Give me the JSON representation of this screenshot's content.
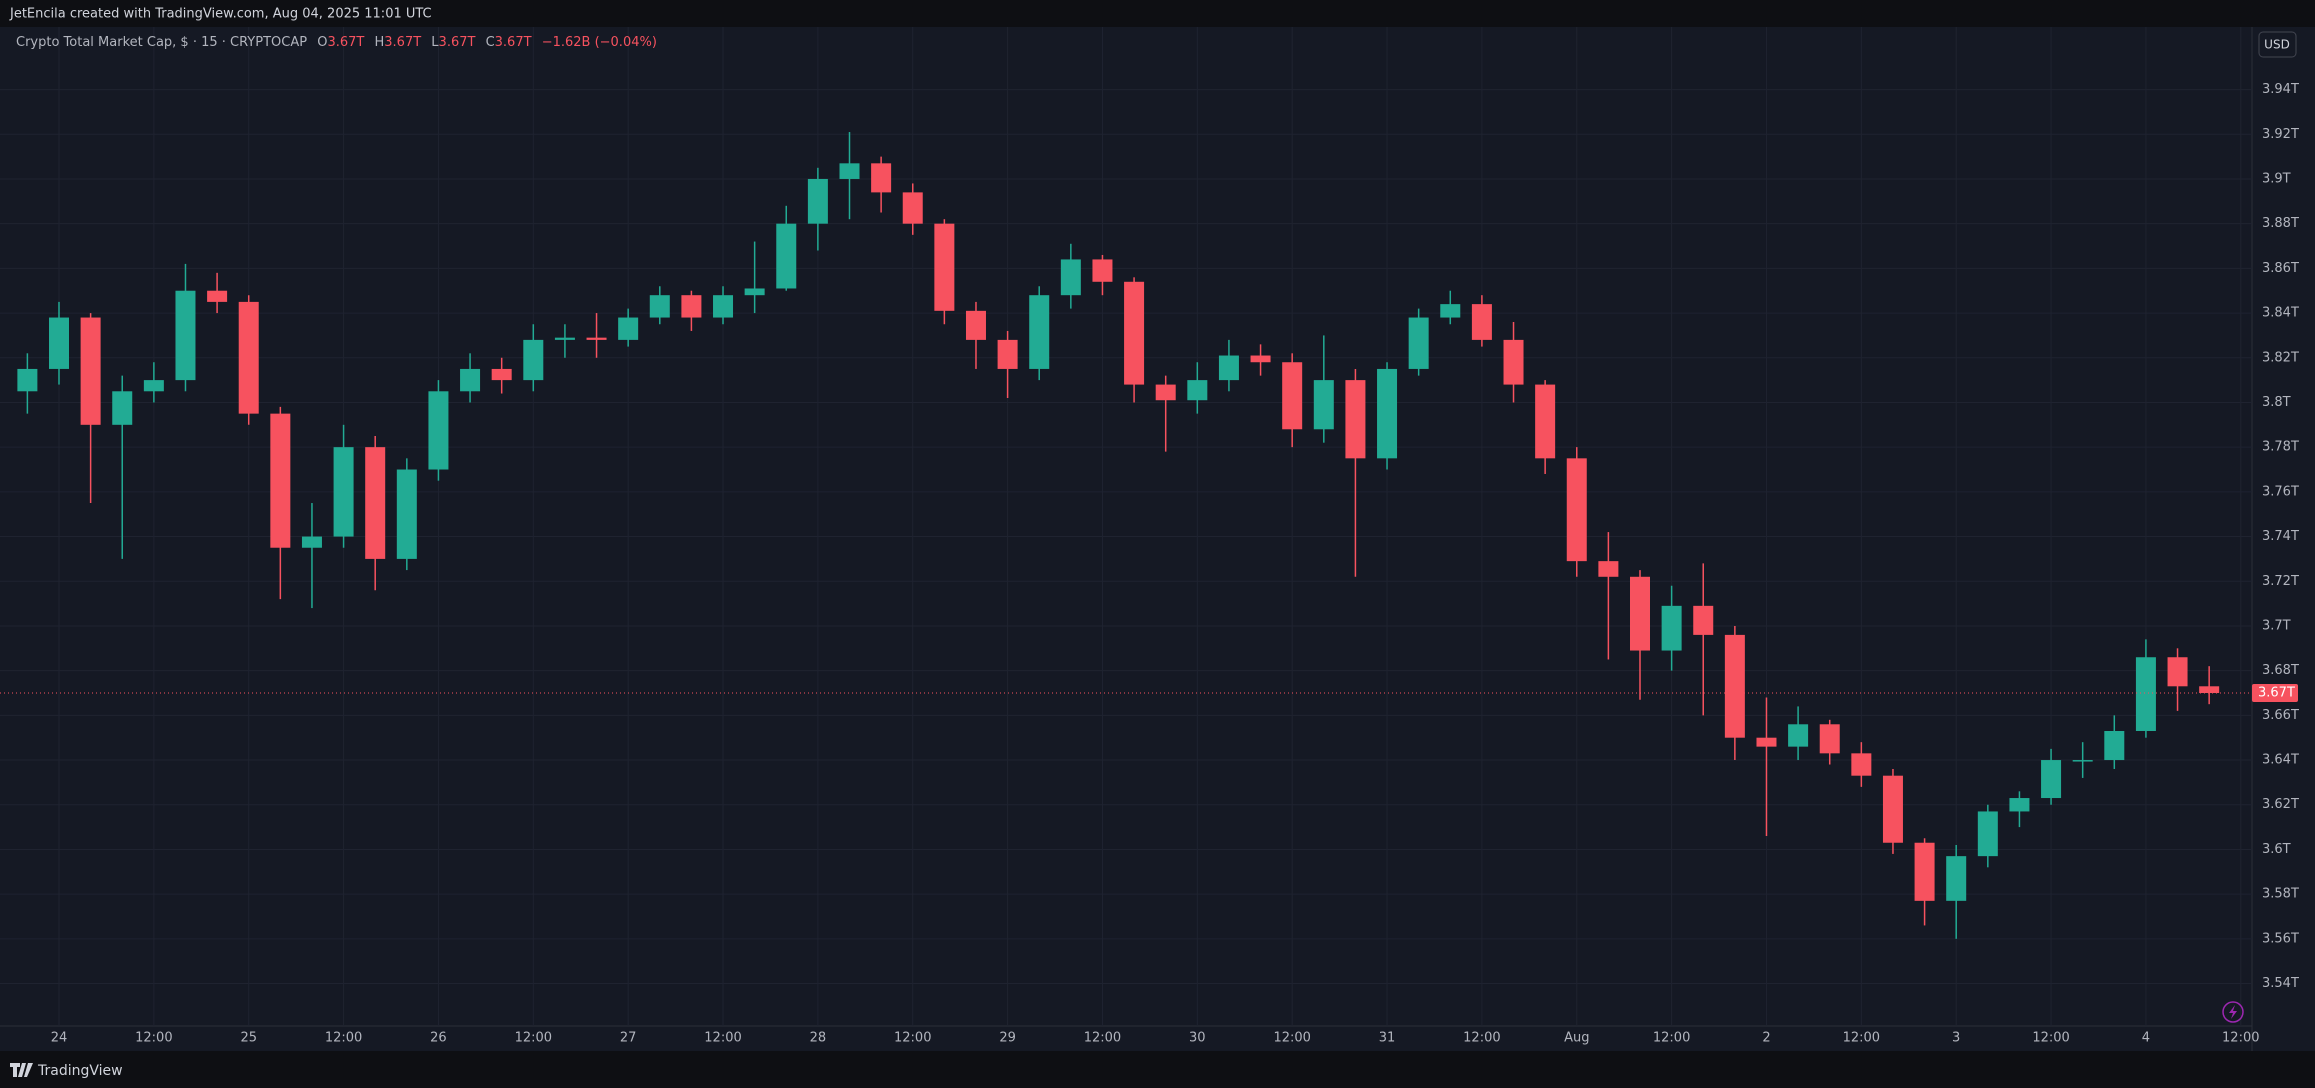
{
  "header": {
    "credit": "JetEncila created with TradingView.com, Aug 04, 2025 11:01 UTC"
  },
  "legend": {
    "symbol": "Crypto Total Market Cap, $ · 15 · CRYPTOCAP",
    "o_label": "O",
    "o": "3.67T",
    "h_label": "H",
    "h": "3.67T",
    "l_label": "L",
    "l": "3.67T",
    "c_label": "C",
    "c": "3.67T",
    "change": "−1.62B (−0.04%)"
  },
  "currency": "USD",
  "footer": {
    "brand": "TradingView"
  },
  "chart_data": {
    "type": "candlestick",
    "up_color": "#22ab94",
    "down_color": "#f7525f",
    "grid": true,
    "x_labels": [
      "24",
      "12:00",
      "25",
      "12:00",
      "26",
      "12:00",
      "27",
      "12:00",
      "28",
      "12:00",
      "29",
      "12:00",
      "30",
      "12:00",
      "31",
      "12:00",
      "Aug",
      "12:00",
      "2",
      "12:00",
      "3",
      "12:00",
      "4",
      "12:00"
    ],
    "open": [
      3.805,
      3.815,
      3.838,
      3.79,
      3.805,
      3.81,
      3.85,
      3.845,
      3.795,
      3.735,
      3.74,
      3.78,
      3.73,
      3.77,
      3.805,
      3.815,
      3.81,
      3.828,
      3.829,
      3.828,
      3.838,
      3.848,
      3.838,
      3.848,
      3.851,
      3.88,
      3.9,
      3.907,
      3.894,
      3.88,
      3.841,
      3.828,
      3.815,
      3.848,
      3.864,
      3.854,
      3.808,
      3.801,
      3.81,
      3.821,
      3.818,
      3.788,
      3.81,
      3.775,
      3.815,
      3.838,
      3.844,
      3.828,
      3.808,
      3.775,
      3.729,
      3.722,
      3.689,
      3.709,
      3.696,
      3.65,
      3.646,
      3.656,
      3.643,
      3.633,
      3.603,
      3.577,
      3.597,
      3.617,
      3.623,
      3.64,
      3.64,
      3.653,
      3.686,
      3.673
    ],
    "high": [
      3.822,
      3.845,
      3.84,
      3.812,
      3.818,
      3.862,
      3.858,
      3.848,
      3.798,
      3.755,
      3.79,
      3.785,
      3.775,
      3.81,
      3.822,
      3.82,
      3.835,
      3.835,
      3.84,
      3.842,
      3.852,
      3.85,
      3.852,
      3.872,
      3.888,
      3.905,
      3.921,
      3.91,
      3.898,
      3.882,
      3.845,
      3.832,
      3.852,
      3.871,
      3.866,
      3.856,
      3.812,
      3.818,
      3.828,
      3.826,
      3.822,
      3.83,
      3.815,
      3.818,
      3.842,
      3.85,
      3.848,
      3.836,
      3.81,
      3.78,
      3.742,
      3.725,
      3.718,
      3.728,
      3.7,
      3.668,
      3.664,
      3.658,
      3.648,
      3.636,
      3.605,
      3.602,
      3.62,
      3.626,
      3.645,
      3.648,
      3.66,
      3.694,
      3.69,
      3.682
    ],
    "low": [
      3.795,
      3.808,
      3.755,
      3.73,
      3.8,
      3.805,
      3.84,
      3.79,
      3.712,
      3.708,
      3.735,
      3.716,
      3.725,
      3.765,
      3.8,
      3.804,
      3.805,
      3.82,
      3.82,
      3.825,
      3.835,
      3.832,
      3.835,
      3.84,
      3.85,
      3.868,
      3.882,
      3.885,
      3.875,
      3.835,
      3.815,
      3.802,
      3.81,
      3.842,
      3.848,
      3.8,
      3.778,
      3.795,
      3.805,
      3.812,
      3.78,
      3.782,
      3.722,
      3.77,
      3.812,
      3.835,
      3.825,
      3.8,
      3.768,
      3.722,
      3.685,
      3.667,
      3.68,
      3.66,
      3.64,
      3.606,
      3.64,
      3.638,
      3.628,
      3.598,
      3.566,
      3.56,
      3.592,
      3.61,
      3.62,
      3.632,
      3.636,
      3.65,
      3.662,
      3.665
    ],
    "close": [
      3.815,
      3.838,
      3.79,
      3.805,
      3.81,
      3.85,
      3.845,
      3.795,
      3.735,
      3.74,
      3.78,
      3.73,
      3.77,
      3.805,
      3.815,
      3.81,
      3.828,
      3.829,
      3.828,
      3.838,
      3.848,
      3.838,
      3.848,
      3.851,
      3.88,
      3.9,
      3.907,
      3.894,
      3.88,
      3.841,
      3.828,
      3.815,
      3.848,
      3.864,
      3.854,
      3.808,
      3.801,
      3.81,
      3.821,
      3.818,
      3.788,
      3.81,
      3.775,
      3.815,
      3.838,
      3.844,
      3.828,
      3.808,
      3.775,
      3.729,
      3.722,
      3.689,
      3.709,
      3.696,
      3.65,
      3.646,
      3.656,
      3.643,
      3.633,
      3.603,
      3.577,
      3.597,
      3.617,
      3.623,
      3.64,
      3.64,
      3.653,
      3.686,
      3.673,
      3.67
    ],
    "last_price": {
      "value": 3.67,
      "label": "3.67T"
    },
    "ylim": [
      3.521,
      3.968
    ],
    "yticks": [
      {
        "value": 3.54,
        "label": "3.54T"
      },
      {
        "value": 3.56,
        "label": "3.56T"
      },
      {
        "value": 3.58,
        "label": "3.58T"
      },
      {
        "value": 3.6,
        "label": "3.6T"
      },
      {
        "value": 3.62,
        "label": "3.62T"
      },
      {
        "value": 3.64,
        "label": "3.64T"
      },
      {
        "value": 3.66,
        "label": "3.66T"
      },
      {
        "value": 3.68,
        "label": "3.68T"
      },
      {
        "value": 3.7,
        "label": "3.7T"
      },
      {
        "value": 3.72,
        "label": "3.72T"
      },
      {
        "value": 3.74,
        "label": "3.74T"
      },
      {
        "value": 3.76,
        "label": "3.76T"
      },
      {
        "value": 3.78,
        "label": "3.78T"
      },
      {
        "value": 3.8,
        "label": "3.8T"
      },
      {
        "value": 3.82,
        "label": "3.82T"
      },
      {
        "value": 3.84,
        "label": "3.84T"
      },
      {
        "value": 3.86,
        "label": "3.86T"
      },
      {
        "value": 3.88,
        "label": "3.88T"
      },
      {
        "value": 3.9,
        "label": "3.9T"
      },
      {
        "value": 3.92,
        "label": "3.92T"
      },
      {
        "value": 3.94,
        "label": "3.94T"
      }
    ]
  }
}
